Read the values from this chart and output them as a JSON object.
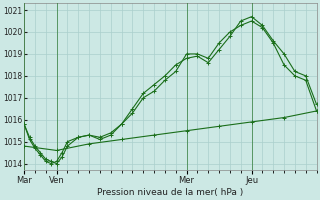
{
  "xlabel": "Pression niveau de la mer( hPa )",
  "ylim": [
    1013.7,
    1021.3
  ],
  "background_color": "#cce8e4",
  "grid_color": "#aacfcc",
  "line_color": "#1a6e1a",
  "day_labels": [
    "Mar",
    "Ven",
    "Mer",
    "Jeu"
  ],
  "day_positions": [
    0,
    3,
    15,
    21
  ],
  "vline_positions": [
    0,
    3,
    15,
    21
  ],
  "xlim": [
    0,
    27
  ],
  "series1_x": [
    0,
    0.5,
    1,
    1.5,
    2,
    2.5,
    3,
    3.5,
    4,
    5,
    6,
    7,
    8,
    9,
    10,
    11,
    12,
    13,
    14,
    15,
    16,
    17,
    18,
    19,
    20,
    21,
    22,
    23,
    24,
    25,
    26,
    27
  ],
  "series1_y": [
    1015.8,
    1015.2,
    1014.8,
    1014.5,
    1014.2,
    1014.1,
    1014.0,
    1014.3,
    1014.8,
    1015.2,
    1015.3,
    1015.2,
    1015.4,
    1015.8,
    1016.3,
    1017.0,
    1017.3,
    1017.8,
    1018.2,
    1019.0,
    1019.0,
    1018.8,
    1019.5,
    1020.0,
    1020.3,
    1020.5,
    1020.2,
    1019.5,
    1018.5,
    1018.0,
    1017.8,
    1016.4
  ],
  "series2_x": [
    0,
    0.5,
    1,
    1.5,
    2,
    2.5,
    3,
    3.5,
    4,
    5,
    6,
    7,
    8,
    9,
    10,
    11,
    12,
    13,
    14,
    15,
    16,
    17,
    18,
    19,
    20,
    21,
    22,
    23,
    24,
    25,
    26,
    27
  ],
  "series2_y": [
    1015.8,
    1015.1,
    1014.7,
    1014.4,
    1014.1,
    1014.0,
    1014.1,
    1014.5,
    1015.0,
    1015.2,
    1015.3,
    1015.1,
    1015.3,
    1015.8,
    1016.5,
    1017.2,
    1017.6,
    1018.0,
    1018.5,
    1018.8,
    1018.9,
    1018.6,
    1019.2,
    1019.8,
    1020.5,
    1020.7,
    1020.3,
    1019.6,
    1019.0,
    1018.2,
    1018.0,
    1016.7
  ],
  "series3_x": [
    0,
    3,
    6,
    9,
    12,
    15,
    18,
    21,
    24,
    27
  ],
  "series3_y": [
    1014.8,
    1014.6,
    1014.9,
    1015.1,
    1015.3,
    1015.5,
    1015.7,
    1015.9,
    1016.1,
    1016.4
  ],
  "yticks": [
    1014,
    1015,
    1016,
    1017,
    1018,
    1019,
    1020,
    1021
  ],
  "marker_size": 3.5,
  "linewidth": 0.8
}
